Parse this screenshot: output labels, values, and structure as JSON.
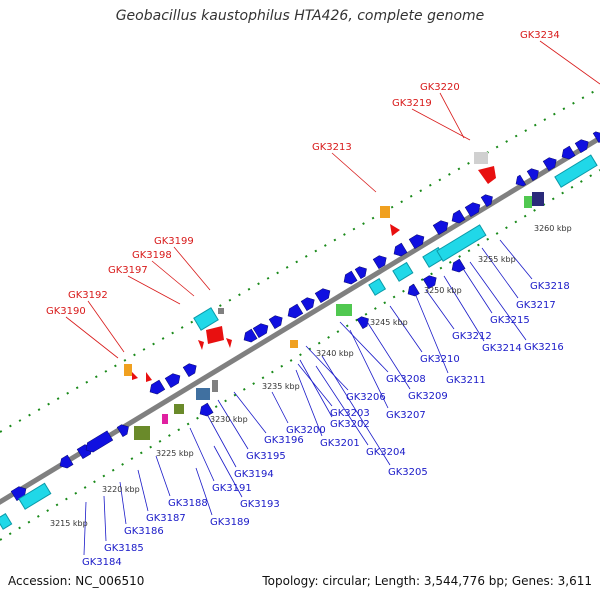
{
  "title": "Geobacillus kaustophilus HTA426, complete genome",
  "footer": {
    "accession": "Accession: NC_006510",
    "topology": "Topology: circular; Length: 3,544,776 bp; Genes: 3,611"
  },
  "kbp_ticks": [
    "3215 kbp",
    "3220 kbp",
    "3225 kbp",
    "3230 kbp",
    "3235 kbp",
    "3240 kbp",
    "3245 kbp",
    "3250 kbp",
    "3255 kbp",
    "3260 kbp"
  ],
  "blue_labels": [
    "GK3184",
    "GK3185",
    "GK3186",
    "GK3187",
    "GK3188",
    "GK3189",
    "GK3191",
    "GK3193",
    "GK3194",
    "GK3195",
    "GK3196",
    "GK3200",
    "GK3201",
    "GK3202",
    "GK3203",
    "GK3204",
    "GK3205",
    "GK3206",
    "GK3207",
    "GK3208",
    "GK3209",
    "GK3210",
    "GK3211",
    "GK3212",
    "GK3214",
    "GK3215",
    "GK3216",
    "GK3217",
    "GK3218"
  ],
  "red_labels": [
    "GK3190",
    "GK3192",
    "GK3197",
    "GK3198",
    "GK3199",
    "GK3213",
    "GK3219",
    "GK3220",
    "GK3234"
  ],
  "colors": {
    "gene_blue": "#1010e0",
    "gene_cyan": "#20d8e8",
    "trna_red": "#e81010",
    "label_blue": "#1a1ac8",
    "label_red": "#d81a1a",
    "gc_green": "#1a7a1a",
    "backbone": "#888888"
  }
}
